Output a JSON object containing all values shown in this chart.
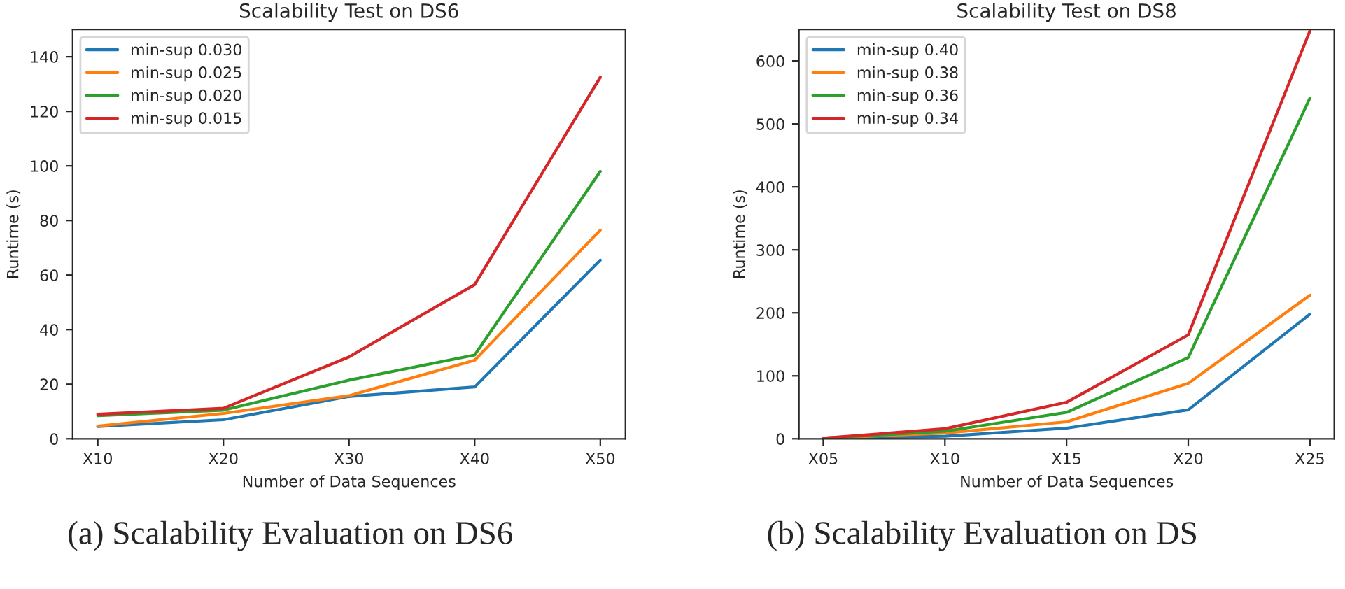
{
  "chart_data": [
    {
      "type": "line",
      "title": "Scalability Test on DS6",
      "xlabel": "Number of Data Sequences",
      "ylabel": "Runtime (s)",
      "categories": [
        "X10",
        "X20",
        "X30",
        "X40",
        "X50"
      ],
      "ylim": [
        0,
        150
      ],
      "yticks": [
        0,
        20,
        40,
        60,
        80,
        100,
        120,
        140
      ],
      "legend": "top left",
      "grid": false,
      "annotations": [
        "(a) Scalability Evaluation on DS6"
      ],
      "series": [
        {
          "name": "min-sup 0.030",
          "color": "#1f77b4",
          "values": [
            4.5,
            7,
            15.5,
            19,
            65.5
          ]
        },
        {
          "name": "min-sup 0.025",
          "color": "#ff7f0e",
          "values": [
            4.7,
            9.3,
            15.8,
            28.8,
            76.5
          ]
        },
        {
          "name": "min-sup 0.020",
          "color": "#2ca02c",
          "values": [
            8.5,
            10.5,
            21.5,
            30.7,
            98
          ]
        },
        {
          "name": "min-sup 0.015",
          "color": "#d62728",
          "values": [
            9,
            11.2,
            30,
            56.5,
            132.5
          ]
        }
      ]
    },
    {
      "type": "line",
      "title": "Scalability Test on DS8",
      "xlabel": "Number of Data Sequences",
      "ylabel": "Runtime (s)",
      "categories": [
        "X05",
        "X10",
        "X15",
        "X20",
        "X25"
      ],
      "ylim": [
        0,
        650
      ],
      "yticks": [
        0,
        100,
        200,
        300,
        400,
        500,
        600
      ],
      "legend": "top left",
      "grid": false,
      "annotations": [
        "(b) Scalability Evaluation on DS"
      ],
      "series": [
        {
          "name": "min-sup 0.40",
          "color": "#1f77b4",
          "values": [
            1,
            4,
            17,
            46,
            198
          ]
        },
        {
          "name": "min-sup 0.38",
          "color": "#ff7f0e",
          "values": [
            1,
            9,
            27,
            88,
            228
          ]
        },
        {
          "name": "min-sup 0.36",
          "color": "#2ca02c",
          "values": [
            1,
            12,
            42,
            129,
            541
          ]
        },
        {
          "name": "min-sup 0.34",
          "color": "#d62728",
          "values": [
            1,
            16,
            58,
            165,
            648
          ]
        }
      ]
    }
  ]
}
